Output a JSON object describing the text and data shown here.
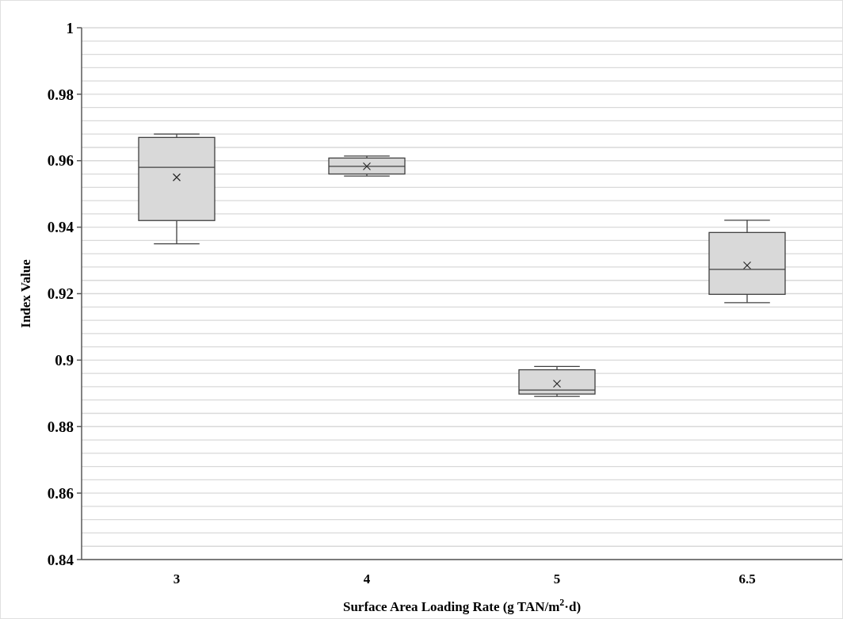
{
  "chart_data": {
    "type": "box",
    "xlabel": "Surface Area Loading Rate (g TAN/m$^{2}$·d)",
    "ylabel": "Index Value",
    "categories": [
      "3",
      "4",
      "5",
      "6.5"
    ],
    "boxes": [
      {
        "low": 0.935,
        "q1": 0.942,
        "median": 0.958,
        "q3": 0.967,
        "high": 0.968,
        "mean": 0.955
      },
      {
        "low": 0.9554,
        "q1": 0.956,
        "median": 0.9583,
        "q3": 0.9608,
        "high": 0.9614,
        "mean": 0.9583
      },
      {
        "low": 0.8891,
        "q1": 0.8898,
        "median": 0.891,
        "q3": 0.8971,
        "high": 0.8981,
        "mean": 0.8929
      },
      {
        "low": 0.9173,
        "q1": 0.9198,
        "median": 0.9273,
        "q3": 0.9384,
        "high": 0.9421,
        "mean": 0.9285
      }
    ],
    "color": "#d9d9d9",
    "ylim": [
      0.84,
      1
    ],
    "yticks": [
      0.84,
      {
        "value": 0.844,
        "label": null
      },
      {
        "value": 0.848,
        "label": null
      },
      {
        "value": 0.852,
        "label": null
      },
      {
        "value": 0.856,
        "label": null
      },
      0.86,
      {
        "value": 0.864,
        "label": null
      },
      {
        "value": 0.868,
        "label": null
      },
      {
        "value": 0.872,
        "label": null
      },
      {
        "value": 0.876,
        "label": null
      },
      0.88,
      {
        "value": 0.884,
        "label": null
      },
      {
        "value": 0.888,
        "label": null
      },
      {
        "value": 0.892,
        "label": null
      },
      {
        "value": 0.896,
        "label": null
      },
      {
        "value": 0.9,
        "label": "0.9"
      },
      {
        "value": 0.904,
        "label": null
      },
      {
        "value": 0.908,
        "label": null
      },
      {
        "value": 0.912,
        "label": null
      },
      {
        "value": 0.916,
        "label": null
      },
      0.92,
      {
        "value": 0.924,
        "label": null
      },
      {
        "value": 0.928,
        "label": null
      },
      {
        "value": 0.932,
        "label": null
      },
      {
        "value": 0.936,
        "label": null
      },
      0.94,
      {
        "value": 0.944,
        "label": null
      },
      {
        "value": 0.948,
        "label": null
      },
      {
        "value": 0.952,
        "label": null
      },
      {
        "value": 0.956,
        "label": null
      },
      0.96,
      {
        "value": 0.964,
        "label": null
      },
      {
        "value": 0.968,
        "label": null
      },
      {
        "value": 0.972,
        "label": null
      },
      {
        "value": 0.976,
        "label": null
      },
      0.98,
      {
        "value": 0.984,
        "label": null
      },
      {
        "value": 0.988,
        "label": null
      },
      {
        "value": 0.992,
        "label": null
      },
      {
        "value": 0.996,
        "label": null
      },
      1
    ],
    "grid": "y",
    "marker": "cross"
  }
}
